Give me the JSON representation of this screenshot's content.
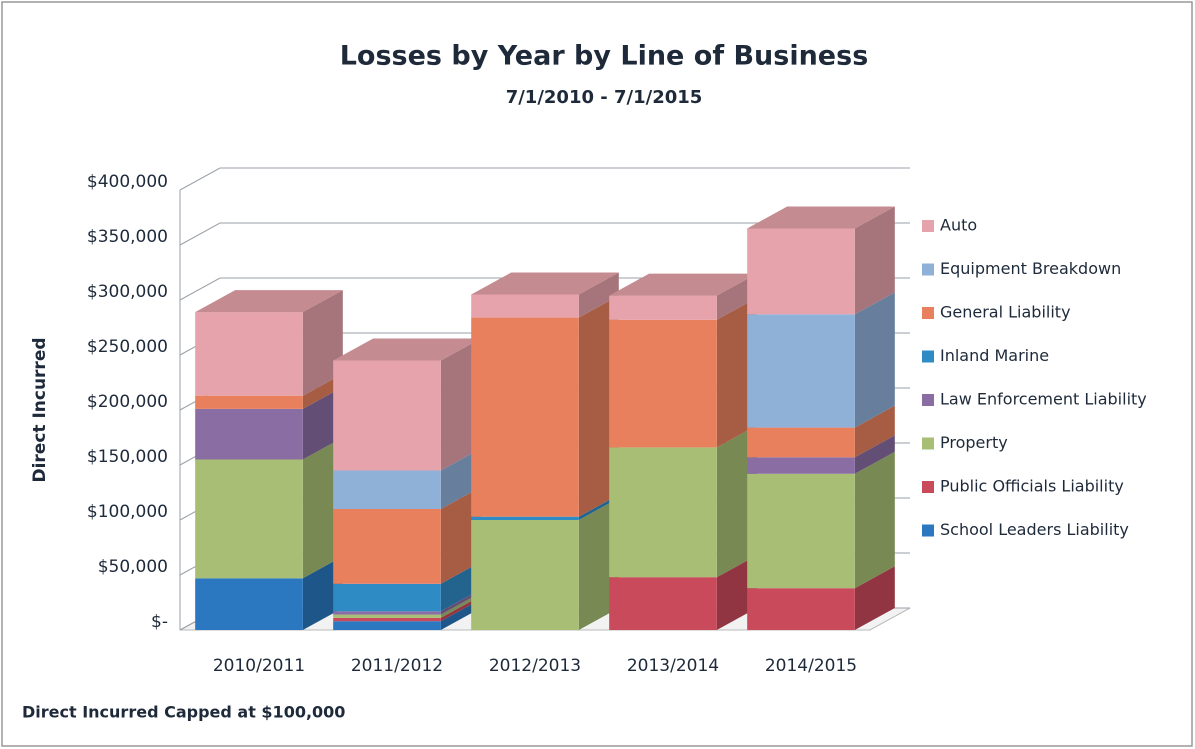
{
  "chart_data": {
    "type": "bar3d_stacked",
    "title": "Losses by Year by Line of Business",
    "subtitle": "7/1/2010 - 7/1/2015",
    "y_label": "Direct Incurred",
    "footnote": "Direct Incurred Capped at $100,000",
    "categories": [
      "2010/2011",
      "2011/2012",
      "2012/2013",
      "2013/2014",
      "2014/2015"
    ],
    "series": [
      {
        "name": "Auto",
        "color": "#e6a3ab",
        "values": [
          76000,
          100000,
          21000,
          22000,
          78000
        ]
      },
      {
        "name": "Equipment Breakdown",
        "color": "#8fb1d8",
        "values": [
          0,
          35000,
          0,
          0,
          103000
        ]
      },
      {
        "name": "General Liability",
        "color": "#e8805e",
        "values": [
          12000,
          68000,
          181000,
          116000,
          27000
        ]
      },
      {
        "name": "Inland Marine",
        "color": "#2f8bc4",
        "values": [
          0,
          25000,
          3000,
          0,
          0
        ]
      },
      {
        "name": "Law Enforcement Liability",
        "color": "#8a6ea3",
        "values": [
          46000,
          3000,
          0,
          0,
          15000
        ]
      },
      {
        "name": "Property",
        "color": "#a7be74",
        "values": [
          108000,
          3000,
          100000,
          118000,
          104000
        ]
      },
      {
        "name": "Public Officials Liability",
        "color": "#c94a5b",
        "values": [
          0,
          3000,
          0,
          48000,
          38000
        ]
      },
      {
        "name": "School Leaders Liability",
        "color": "#2b78c0",
        "values": [
          47000,
          8000,
          0,
          0,
          0
        ]
      }
    ],
    "ylim": [
      0,
      400000
    ],
    "yticks": [
      {
        "value": 0,
        "label": "$-"
      },
      {
        "value": 50000,
        "label": "$50,000"
      },
      {
        "value": 100000,
        "label": "$100,000"
      },
      {
        "value": 150000,
        "label": "$150,000"
      },
      {
        "value": 200000,
        "label": "$200,000"
      },
      {
        "value": 250000,
        "label": "$250,000"
      },
      {
        "value": 300000,
        "label": "$300,000"
      },
      {
        "value": 350000,
        "label": "$350,000"
      },
      {
        "value": 400000,
        "label": "$400,000"
      }
    ],
    "grid": true,
    "legend": "right"
  }
}
